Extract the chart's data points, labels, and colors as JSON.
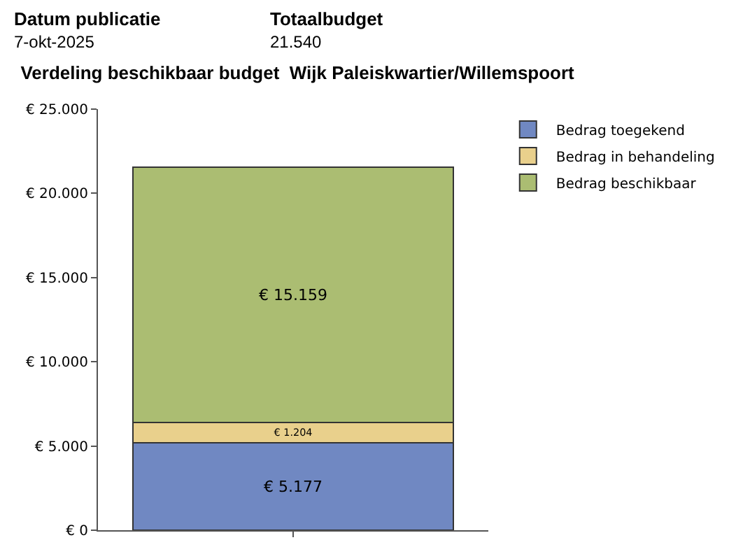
{
  "chart_data": {
    "type": "bar",
    "title": "Verdeling beschikbaar budget  Wijk Paleiskwartier/Willemspoort",
    "annotations": [
      "Datum publicatie",
      "7-okt-2025",
      "Totaalbudget",
      "21.540"
    ],
    "categories": [
      null
    ],
    "stacked": true,
    "series": [
      {
        "name": "Bedrag toegekend",
        "color": "#7088c2",
        "values": [
          5177
        ],
        "value_labels": [
          "€ 5.177"
        ]
      },
      {
        "name": "Bedrag in behandeling",
        "color": "#e9d08c",
        "values": [
          1204
        ],
        "value_labels": [
          "€ 1.204"
        ]
      },
      {
        "name": "Bedrag beschikbaar",
        "color": "#abbd72",
        "values": [
          15159
        ],
        "value_labels": [
          "€ 15.159"
        ]
      }
    ],
    "ylim": [
      0,
      25000
    ],
    "yticks": [
      {
        "value": 0,
        "label": "€ 0"
      },
      {
        "value": 5000,
        "label": "€ 5.000"
      },
      {
        "value": 10000,
        "label": "€ 10.000"
      },
      {
        "value": 15000,
        "label": "€ 15.000"
      },
      {
        "value": 20000,
        "label": "€ 20.000"
      },
      {
        "value": 25000,
        "label": "€ 25.000"
      }
    ],
    "legend": "top right"
  }
}
